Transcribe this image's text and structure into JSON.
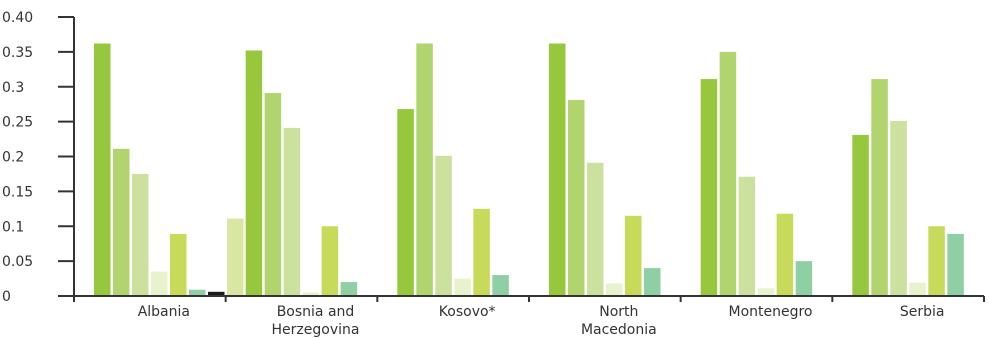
{
  "chart_data": {
    "type": "bar",
    "title": "",
    "xlabel": "",
    "ylabel": "",
    "ylim": [
      0,
      0.4
    ],
    "yticks": [
      "0",
      "0.05",
      "0.1",
      "0.15",
      "0.2",
      "0.25",
      "0.3",
      "0.35",
      "0.40"
    ],
    "grid": false,
    "legend": "none",
    "categories": [
      [
        "Albania"
      ],
      [
        "Bosnia and",
        "Herzegovina"
      ],
      [
        "Kosovo*"
      ],
      [
        "North",
        "Macedonia"
      ],
      [
        "Montenegro"
      ],
      [
        "Serbia"
      ]
    ],
    "series": [
      {
        "color": "#97c73d",
        "values": [
          0.362,
          0.352,
          0.268,
          0.362,
          0.311,
          0.231
        ]
      },
      {
        "color": "#b1d46e",
        "values": [
          0.211,
          0.291,
          0.362,
          0.281,
          0.35,
          0.311
        ]
      },
      {
        "color": "#cbe19d",
        "values": [
          0.175,
          0.241,
          0.201,
          0.191,
          0.171,
          0.251
        ]
      },
      {
        "color": "#e8f2cf",
        "values": [
          0.035,
          0.005,
          0.025,
          0.018,
          0.011,
          0.019
        ]
      },
      {
        "color": "#c8da5a",
        "values": [
          0.089,
          0.1,
          0.125,
          0.115,
          0.118,
          0.1
        ]
      },
      {
        "color": "#8fcfa4",
        "values": [
          0.009,
          0.02,
          0.03,
          0.04,
          0.05,
          0.089
        ]
      },
      {
        "color": "#1a1a1a",
        "values": [
          0.006,
          null,
          null,
          null,
          null,
          null
        ]
      },
      {
        "color": "#d9e7a3",
        "values": [
          0.111,
          null,
          null,
          null,
          null,
          null
        ]
      }
    ]
  }
}
